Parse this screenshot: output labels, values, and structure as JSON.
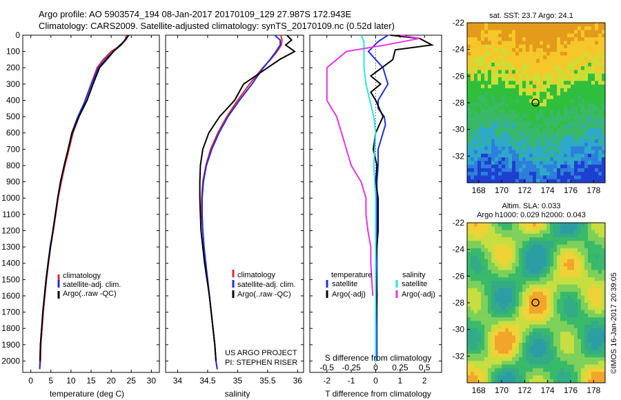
{
  "header": {
    "line1": "Argo profile: AO 5903574_194 08-Jan-2017 20170109_129 27.987S 172.943E",
    "line2": "Climatology: CARS2009. Satellite-adjusted climatology: synTS_20170109.nc (0.52d later)"
  },
  "colors": {
    "climatology": "#e8262b",
    "satellite": "#1f2de0",
    "argo": "#000000",
    "sal_satellite": "#29e3e8",
    "sal_argo": "#e333e3"
  },
  "chart_data": [
    {
      "type": "line",
      "id": "temperature",
      "xlabel": "temperature (deg C)",
      "xlim": [
        -2,
        32
      ],
      "ylim": [
        2070,
        0
      ],
      "xticks": [
        0,
        5,
        10,
        15,
        20,
        25,
        30
      ],
      "yticks": [
        0,
        100,
        200,
        300,
        400,
        500,
        600,
        700,
        800,
        900,
        1000,
        1100,
        1200,
        1300,
        1400,
        1500,
        1600,
        1700,
        1800,
        1900,
        2000
      ],
      "legend": [
        "climatology",
        "satellite-adj. clim.",
        "Argo(..raw -QC)"
      ],
      "series": [
        {
          "name": "climatology",
          "x": [
            23.8,
            23.5,
            22.5,
            20,
            18,
            16.5,
            15,
            13.5,
            12,
            10.5,
            9.5,
            8.5,
            7.6,
            6.8,
            6.2,
            5.6,
            4.9,
            4.4,
            3.9,
            3.5,
            3.1,
            2.8,
            2.5,
            2.4,
            2.2
          ],
          "y": [
            0,
            30,
            60,
            100,
            150,
            200,
            300,
            400,
            500,
            600,
            700,
            800,
            900,
            1000,
            1100,
            1200,
            1300,
            1400,
            1500,
            1600,
            1700,
            1800,
            1900,
            2000,
            2050
          ]
        },
        {
          "name": "satellite-adj. clim.",
          "x": [
            24.3,
            23.6,
            22.2,
            20.5,
            18.5,
            16.8,
            15.1,
            13.6,
            11.7,
            10.2,
            9.3,
            8.3,
            7.4,
            6.7,
            6.1,
            5.5,
            4.8,
            4.3,
            3.8,
            3.4,
            3.0,
            2.7,
            2.4,
            2.3,
            2.2
          ],
          "y": [
            0,
            30,
            60,
            100,
            150,
            200,
            300,
            400,
            500,
            600,
            700,
            800,
            900,
            1000,
            1100,
            1200,
            1300,
            1400,
            1500,
            1600,
            1700,
            1800,
            1900,
            2000,
            2050
          ]
        },
        {
          "name": "Argo(..raw -QC)",
          "x": [
            24.4,
            23.4,
            22.4,
            20.6,
            18.9,
            17.1,
            15.5,
            14,
            12,
            10.3,
            9.3,
            8.3,
            7.4,
            6.7,
            6.1,
            5.5,
            4.9,
            4.3,
            3.8,
            3.4,
            3.0,
            2.7,
            2.4,
            2.3
          ],
          "y": [
            0,
            30,
            60,
            100,
            150,
            200,
            300,
            400,
            500,
            600,
            700,
            800,
            900,
            1000,
            1100,
            1200,
            1300,
            1400,
            1500,
            1600,
            1700,
            1800,
            1900,
            2000
          ]
        }
      ]
    },
    {
      "type": "line",
      "id": "salinity",
      "xlabel": "salinity",
      "xlim": [
        33.8,
        36.1
      ],
      "ylim": [
        2070,
        0
      ],
      "xticks": [
        34,
        34.5,
        35,
        35.5,
        36
      ],
      "xticklabels": [
        "34",
        "34.5",
        "35",
        "35.5",
        "36"
      ],
      "legend": [
        "climatology",
        "satellite-adj. clim.",
        "Argo(..raw -QC)"
      ],
      "annotation": [
        "US ARGO PROJECT",
        "PI: STEPHEN RISER"
      ],
      "series": [
        {
          "name": "climatology",
          "x": [
            35.72,
            35.74,
            35.73,
            35.66,
            35.55,
            35.42,
            35.2,
            35.0,
            34.82,
            34.67,
            34.55,
            34.47,
            34.42,
            34.4,
            34.4,
            34.42,
            34.44,
            34.46,
            34.5,
            34.53,
            34.56,
            34.59,
            34.62,
            34.64,
            34.66
          ],
          "y": [
            0,
            30,
            60,
            100,
            150,
            200,
            300,
            400,
            500,
            600,
            700,
            800,
            900,
            1000,
            1100,
            1200,
            1300,
            1400,
            1500,
            1600,
            1700,
            1800,
            1900,
            2000,
            2050
          ]
        },
        {
          "name": "satellite-adj. clim.",
          "x": [
            35.62,
            35.71,
            35.71,
            35.64,
            35.54,
            35.43,
            35.24,
            35.03,
            34.84,
            34.69,
            34.57,
            34.48,
            34.43,
            34.41,
            34.41,
            34.42,
            34.44,
            34.47,
            34.5,
            34.53,
            34.56,
            34.59,
            34.62,
            34.64,
            34.66
          ],
          "y": [
            0,
            30,
            60,
            100,
            150,
            200,
            300,
            400,
            500,
            600,
            700,
            800,
            900,
            1000,
            1100,
            1200,
            1300,
            1400,
            1500,
            1600,
            1700,
            1800,
            1900,
            2000,
            2050
          ]
        },
        {
          "name": "Argo(..raw -QC)",
          "x": [
            35.82,
            35.9,
            35.8,
            35.95,
            35.7,
            35.5,
            35.1,
            34.95,
            34.7,
            34.52,
            34.42,
            34.38,
            34.37,
            34.37,
            34.38,
            34.39,
            34.42,
            34.45,
            34.49,
            34.53,
            34.56,
            34.59,
            34.62,
            34.64
          ],
          "y": [
            0,
            30,
            60,
            100,
            150,
            200,
            300,
            400,
            500,
            600,
            700,
            800,
            900,
            1000,
            1100,
            1200,
            1300,
            1400,
            1500,
            1600,
            1700,
            1800,
            1900,
            2000
          ]
        }
      ]
    },
    {
      "type": "line",
      "id": "differences",
      "xlabel": "T difference from climatology",
      "xlabel_top": "S difference from climatology",
      "xlim": [
        -2.7,
        2.7
      ],
      "ylim": [
        2070,
        0
      ],
      "xticks": [
        -2,
        -1,
        0,
        1,
        2
      ],
      "sticks": [
        "-0.5",
        "-0.25",
        "0",
        "0.25",
        "0.5"
      ],
      "legend_headers": [
        "temperature",
        "salinity"
      ],
      "legend": [
        "satellite",
        "Argo(-adj)",
        "satellite",
        "Argo(-adj)"
      ],
      "series": [
        {
          "name": "temperature satellite",
          "x": [
            0.5,
            0.1,
            -0.3,
            0.3,
            0.5,
            0.3,
            0.1,
            0.1,
            0.35,
            0.4,
            0.3,
            0.1,
            0.1,
            0.05,
            0.05,
            0.05,
            0.05,
            0.05,
            0.05,
            0.05,
            0.05,
            0.05,
            0.05,
            0.05
          ],
          "y": [
            0,
            40,
            100,
            200,
            300,
            350,
            400,
            450,
            500,
            550,
            600,
            700,
            800,
            900,
            1000,
            1100,
            1200,
            1300,
            1400,
            1500,
            1600,
            1700,
            1800,
            2000
          ]
        },
        {
          "name": "temperature Argo(-adj)",
          "x": [
            0.6,
            1.8,
            2.3,
            0.8,
            0.7,
            -0.2,
            0.2,
            -0.2,
            0.0,
            0.3,
            0.0,
            -0.1,
            0.05,
            0.0,
            0.1,
            0.1,
            0.0,
            0.05,
            0.0
          ],
          "y": [
            0,
            20,
            60,
            90,
            150,
            250,
            300,
            350,
            400,
            500,
            600,
            700,
            800,
            900,
            1000,
            1200,
            1400,
            1600,
            1800
          ]
        },
        {
          "name": "salinity satellite",
          "x": [
            -0.15,
            -0.12,
            -0.12,
            -0.12,
            -0.1,
            -0.06,
            -0.02,
            0.0,
            -0.02,
            0.0,
            0.0,
            0.0,
            0.0,
            0.0
          ],
          "y": [
            0,
            40,
            100,
            200,
            300,
            400,
            500,
            600,
            800,
            1000,
            1200,
            1400,
            1600,
            2000
          ]
        },
        {
          "name": "salinity Argo(-adj)",
          "x": [
            0.25,
            0.45,
            0.1,
            -0.3,
            -0.5,
            -0.5,
            -0.5,
            -0.4,
            -0.35,
            -0.3,
            -0.25,
            -0.15,
            -0.1,
            -0.1,
            -0.08,
            -0.05,
            -0.05,
            -0.04,
            -0.03
          ],
          "y": [
            0,
            20,
            60,
            100,
            200,
            300,
            400,
            500,
            600,
            700,
            800,
            900,
            1000,
            1100,
            1200,
            1300,
            1400,
            1500,
            1600
          ]
        }
      ]
    },
    {
      "type": "heatmap",
      "id": "sst-map",
      "title": "sat. SST: 23.7  Argo: 24.1",
      "xlim": [
        167,
        179
      ],
      "ylim": [
        -34,
        -22
      ],
      "xticks": [
        168,
        170,
        172,
        174,
        176,
        178
      ],
      "yticks": [
        -22,
        -24,
        -26,
        -28,
        -30,
        -32
      ],
      "marker": {
        "lon": 172.943,
        "lat": -27.987
      }
    },
    {
      "type": "heatmap",
      "id": "sla-map",
      "title": "Altim. SLA: 0.033",
      "subtitle": "Argo h1000: 0.029  h2000: 0.043",
      "xlim": [
        167,
        179
      ],
      "ylim": [
        -34,
        -22
      ],
      "xticks": [
        168,
        170,
        172,
        174,
        176,
        178
      ],
      "yticks": [
        -22,
        -24,
        -26,
        -28,
        -30,
        -32
      ],
      "marker": {
        "lon": 172.943,
        "lat": -27.987
      }
    }
  ],
  "footer": {
    "stamp": "©IMOS 16-Jan-2017 20:39:05"
  }
}
